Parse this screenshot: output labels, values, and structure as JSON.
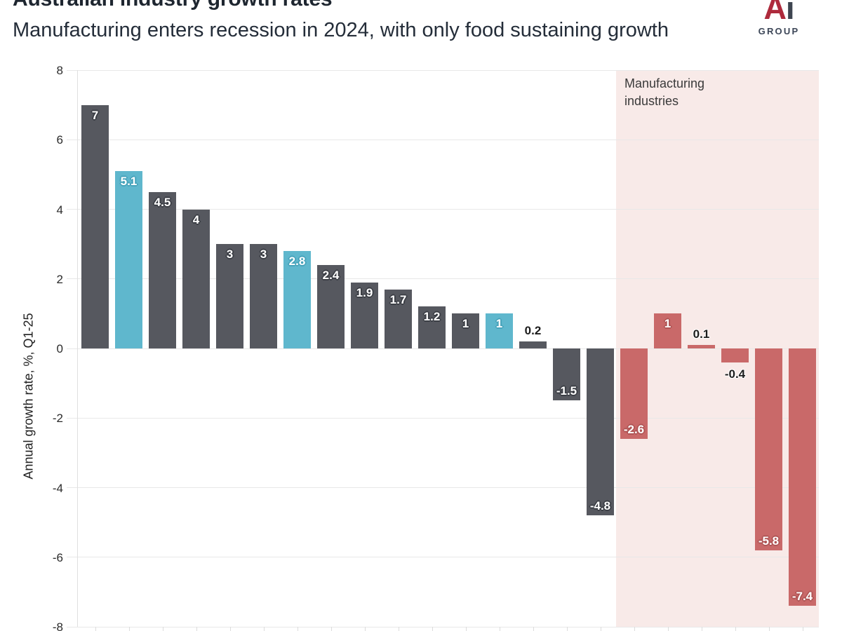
{
  "header": {
    "title": "Australian industry growth rates",
    "subtitle": "Manufacturing enters recession in 2024, with only food sustaining growth"
  },
  "logo": {
    "letter_a": "A",
    "letter_i": "i",
    "group": "GROUP",
    "a_color": "#ae2a3c",
    "i_color": "#3e4550",
    "group_color": "#3c4657"
  },
  "chart_data": {
    "type": "bar",
    "title": "Australian industry growth rates",
    "subtitle": "Manufacturing enters recession in 2024, with only food sustaining growth",
    "ylabel": "Annual growth rate, %, Q1-25",
    "ylim": [
      -8,
      8
    ],
    "yticks": [
      8,
      6,
      4,
      2,
      0,
      -2,
      -4,
      -6,
      -8
    ],
    "grid": true,
    "x_tick_labels_visible": false,
    "annotation": "Manufacturing industries",
    "annotation_region": "last 6 bars shaded",
    "bars": [
      {
        "value": 7,
        "label": "7",
        "color": "dark",
        "label_pos": "inside-top"
      },
      {
        "value": 5.1,
        "label": "5.1",
        "color": "blue",
        "label_pos": "inside-top"
      },
      {
        "value": 4.5,
        "label": "4.5",
        "color": "dark",
        "label_pos": "inside-top"
      },
      {
        "value": 4,
        "label": "4",
        "color": "dark",
        "label_pos": "inside-top"
      },
      {
        "value": 3,
        "label": "3",
        "color": "dark",
        "label_pos": "inside-top"
      },
      {
        "value": 3,
        "label": "3",
        "color": "dark",
        "label_pos": "inside-top"
      },
      {
        "value": 2.8,
        "label": "2.8",
        "color": "blue",
        "label_pos": "inside-top"
      },
      {
        "value": 2.4,
        "label": "2.4",
        "color": "dark",
        "label_pos": "inside-top"
      },
      {
        "value": 1.9,
        "label": "1.9",
        "color": "dark",
        "label_pos": "inside-top"
      },
      {
        "value": 1.7,
        "label": "1.7",
        "color": "dark",
        "label_pos": "inside-top"
      },
      {
        "value": 1.2,
        "label": "1.2",
        "color": "dark",
        "label_pos": "inside-top"
      },
      {
        "value": 1,
        "label": "1",
        "color": "dark",
        "label_pos": "inside-top"
      },
      {
        "value": 1,
        "label": "1",
        "color": "blue",
        "label_pos": "inside-top"
      },
      {
        "value": 0.2,
        "label": "0.2",
        "color": "dark",
        "label_pos": "above"
      },
      {
        "value": -1.5,
        "label": "-1.5",
        "color": "dark",
        "label_pos": "inside-bottom"
      },
      {
        "value": -4.8,
        "label": "-4.8",
        "color": "dark",
        "label_pos": "inside-bottom"
      },
      {
        "value": -2.6,
        "label": "-2.6",
        "color": "red",
        "label_pos": "inside-bottom"
      },
      {
        "value": 1,
        "label": "1",
        "color": "red",
        "label_pos": "inside-top"
      },
      {
        "value": 0.1,
        "label": "0.1",
        "color": "red",
        "label_pos": "above"
      },
      {
        "value": -0.4,
        "label": "-0.4",
        "color": "red",
        "label_pos": "below"
      },
      {
        "value": -5.8,
        "label": "-5.8",
        "color": "red",
        "label_pos": "inside-bottom"
      },
      {
        "value": -7.4,
        "label": "-7.4",
        "color": "red",
        "label_pos": "inside-bottom"
      }
    ],
    "colors": {
      "dark": "#56585f",
      "blue": "#5fb7cd",
      "red": "#c96969",
      "shade": "#f8eae8",
      "grid": "#e8e8e8",
      "axis": "#e0e0e0",
      "xtick": "#dcdcdc"
    }
  }
}
